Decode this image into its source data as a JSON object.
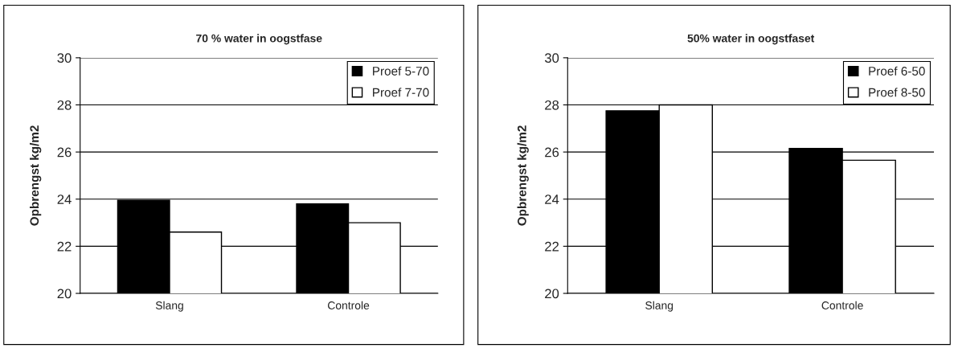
{
  "chart_data": [
    {
      "type": "bar",
      "title": "70 % water in oogstfase",
      "ylabel": "Opbrengst kg/m2",
      "categories": [
        "Slang",
        "Controle"
      ],
      "series": [
        {
          "name": "Proef 5-70",
          "color": "#000000",
          "values": [
            23.95,
            23.8
          ]
        },
        {
          "name": "Proef 7-70",
          "color": "#ffffff",
          "values": [
            22.6,
            23.0
          ]
        }
      ],
      "ylim": [
        20,
        30
      ],
      "yticks": [
        20,
        22,
        24,
        26,
        28,
        30
      ],
      "grid": "y",
      "legend": "top right"
    },
    {
      "type": "bar",
      "title": "50% water in oogstfaset",
      "ylabel": "Opbrengst kg/m2",
      "categories": [
        "Slang",
        "Controle"
      ],
      "series": [
        {
          "name": "Proef 6-50",
          "color": "#000000",
          "values": [
            27.75,
            26.15
          ]
        },
        {
          "name": "Proef 8-50",
          "color": "#ffffff",
          "values": [
            28.0,
            25.65
          ]
        }
      ],
      "ylim": [
        20,
        30
      ],
      "yticks": [
        20,
        22,
        24,
        26,
        28,
        30
      ],
      "grid": "y",
      "legend": "top right"
    }
  ]
}
